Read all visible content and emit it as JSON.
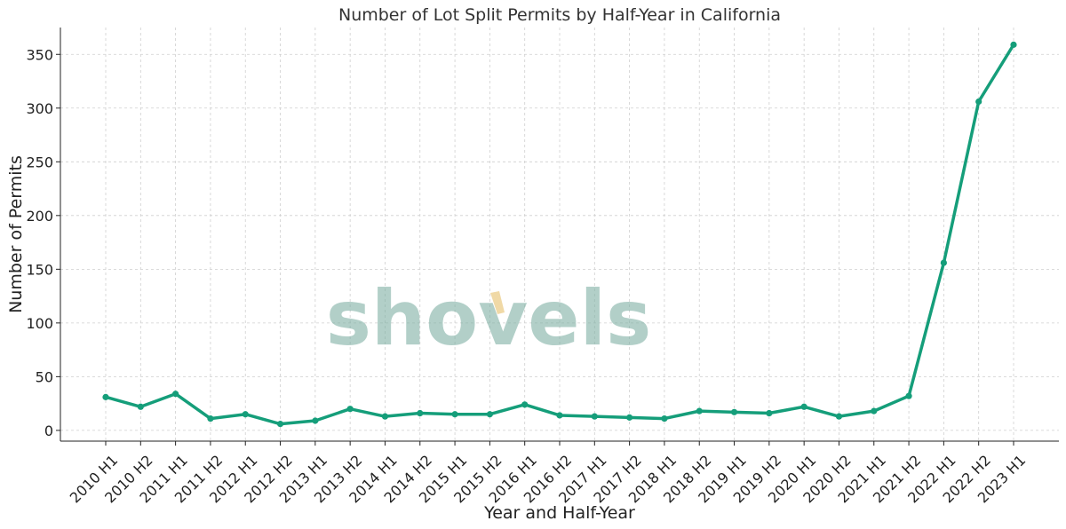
{
  "chart_data": {
    "type": "line",
    "title": "Number of Lot Split Permits by Half-Year in California",
    "xlabel": "Year and Half-Year",
    "ylabel": "Number of Permits",
    "categories": [
      "2010 H1",
      "2010 H2",
      "2011 H1",
      "2011 H2",
      "2012 H1",
      "2012 H2",
      "2013 H1",
      "2013 H2",
      "2014 H1",
      "2014 H2",
      "2015 H1",
      "2015 H2",
      "2016 H1",
      "2016 H2",
      "2017 H1",
      "2017 H2",
      "2018 H1",
      "2018 H2",
      "2019 H1",
      "2019 H2",
      "2020 H1",
      "2020 H2",
      "2021 H1",
      "2021 H2",
      "2022 H1",
      "2022 H2",
      "2023 H1"
    ],
    "series": [
      {
        "values": [
          31,
          22,
          34,
          11,
          15,
          6,
          9,
          20,
          13,
          16,
          15,
          15,
          24,
          14,
          13,
          12,
          11,
          18,
          17,
          16,
          22,
          13,
          18,
          32,
          156,
          306,
          359
        ]
      }
    ],
    "ylim": [
      -10,
      375
    ],
    "yticks": [
      0,
      50,
      100,
      150,
      200,
      250,
      300,
      350
    ],
    "grid": true,
    "colors": {
      "line": "#159e7a",
      "watermark": "#7fb0a4",
      "watermark_accent": "#f0d9a6"
    }
  },
  "watermark": {
    "text": "shovels"
  }
}
